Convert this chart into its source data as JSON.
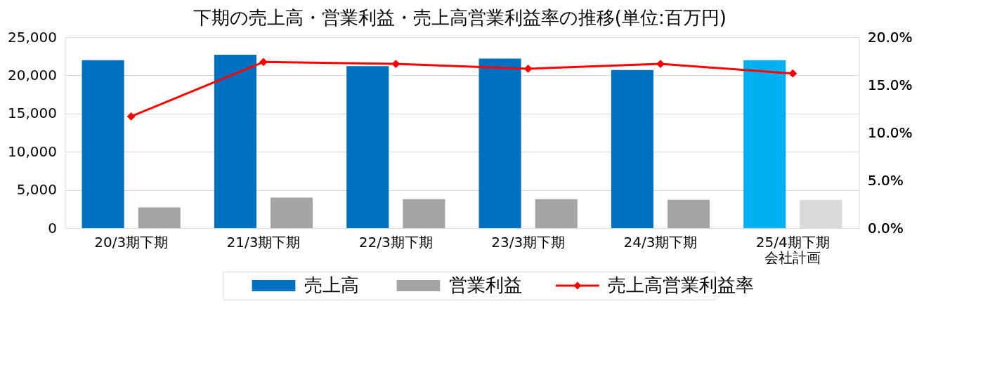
{
  "chart_data": {
    "type": "bar",
    "title": "下期の売上高・営業利益・売上高営業利益率の推移(単位:百万円)",
    "categories": [
      "20/3期下期",
      "21/3期下期",
      "22/3期下期",
      "23/3期下期",
      "24/3期下期",
      "25/4期下期会社計画"
    ],
    "series": [
      {
        "name": "売上高",
        "color": "#0070c0",
        "colors": [
          "#0070c0",
          "#0070c0",
          "#0070c0",
          "#0070c0",
          "#0070c0",
          "#00b0f0"
        ],
        "values": [
          22000,
          22700,
          21200,
          22200,
          20700,
          22000
        ]
      },
      {
        "name": "営業利益",
        "color": "#a5a5a5",
        "colors": [
          "#a5a5a5",
          "#a5a5a5",
          "#a5a5a5",
          "#a5a5a5",
          "#a5a5a5",
          "#d9d9d9"
        ],
        "values": [
          2700,
          4000,
          3800,
          3800,
          3700,
          3700
        ]
      },
      {
        "name": "売上高営業利益率",
        "type": "line",
        "axis": "y2",
        "color": "#ff0000",
        "values": [
          11.7,
          17.4,
          17.2,
          16.7,
          17.2,
          16.2
        ]
      }
    ],
    "ylim": [
      0,
      25000
    ],
    "yticks": [
      {
        "value": 0,
        "label": "0"
      },
      {
        "value": 5000,
        "label": "5,000"
      },
      {
        "value": 10000,
        "label": "10,000"
      },
      {
        "value": 15000,
        "label": "15,000"
      },
      {
        "value": 20000,
        "label": "20,000"
      },
      {
        "value": 25000,
        "label": "25,000"
      }
    ],
    "y2lim": [
      0,
      20
    ],
    "y2ticks": [
      {
        "value": 0,
        "label": "0.0%"
      },
      {
        "value": 5,
        "label": "5.0%"
      },
      {
        "value": 10,
        "label": "10.0%"
      },
      {
        "value": 15,
        "label": "15.0%"
      },
      {
        "value": 20,
        "label": "20.0%"
      }
    ],
    "grid": "y",
    "legend": "bottom",
    "marker": "diamond",
    "line_style": "solid"
  }
}
